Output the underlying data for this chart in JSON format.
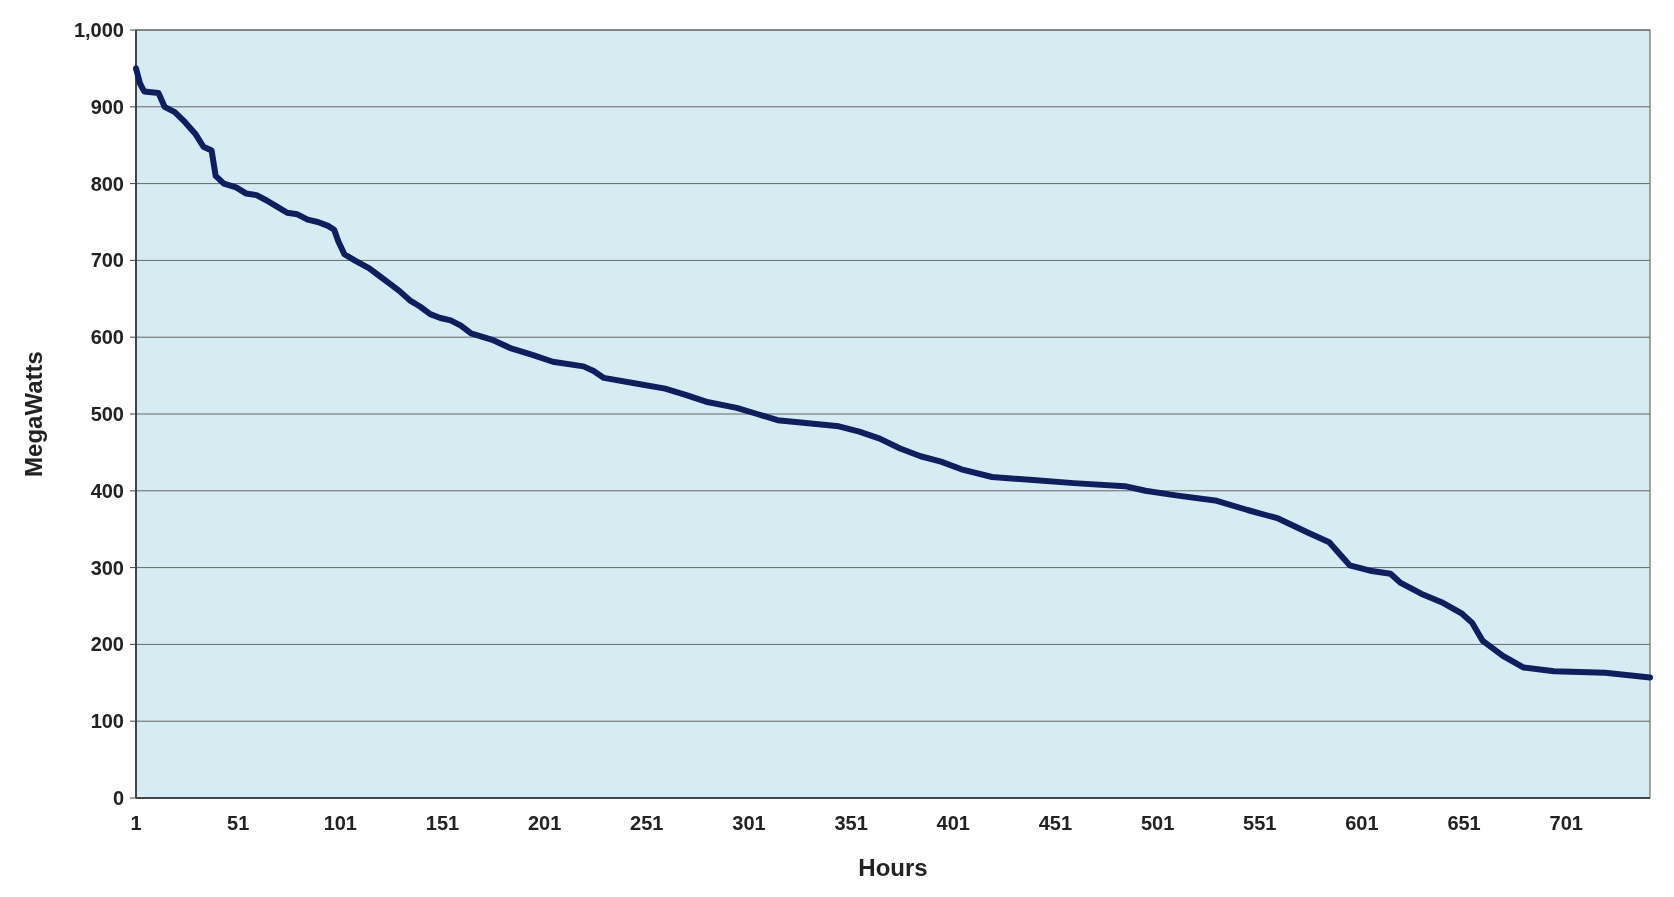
{
  "chart_data": {
    "type": "line",
    "xlabel": "Hours",
    "ylabel": "MegaWatts",
    "x": [
      1,
      3,
      5,
      12,
      15,
      20,
      25,
      30,
      34,
      38,
      40,
      44,
      50,
      55,
      60,
      65,
      70,
      75,
      80,
      85,
      90,
      95,
      98,
      100,
      103,
      108,
      115,
      120,
      125,
      130,
      135,
      140,
      145,
      150,
      155,
      160,
      165,
      175,
      185,
      195,
      205,
      220,
      225,
      230,
      245,
      260,
      270,
      280,
      295,
      305,
      315,
      330,
      345,
      355,
      365,
      375,
      385,
      395,
      405,
      420,
      440,
      460,
      485,
      495,
      510,
      530,
      545,
      560,
      575,
      585,
      595,
      605,
      615,
      620,
      630,
      640,
      650,
      655,
      660,
      670,
      680,
      695,
      720,
      742
    ],
    "series": [
      {
        "color": "#0d1f5c",
        "values": [
          950,
          930,
          920,
          918,
          900,
          893,
          880,
          865,
          848,
          843,
          810,
          800,
          795,
          787,
          785,
          778,
          770,
          762,
          760,
          753,
          750,
          745,
          740,
          725,
          708,
          700,
          690,
          680,
          670,
          660,
          648,
          640,
          630,
          625,
          622,
          615,
          605,
          597,
          585,
          577,
          568,
          562,
          556,
          547,
          540,
          533,
          525,
          516,
          508,
          500,
          492,
          488,
          484,
          477,
          468,
          455,
          445,
          438,
          428,
          418,
          414,
          410,
          406,
          400,
          394,
          387,
          375,
          364,
          345,
          333,
          303,
          296,
          292,
          280,
          266,
          255,
          240,
          228,
          205,
          185,
          170,
          165,
          163,
          157
        ]
      }
    ],
    "xlim": [
      1,
      742
    ],
    "xticks": [
      1,
      51,
      101,
      151,
      201,
      251,
      301,
      351,
      401,
      451,
      501,
      551,
      601,
      651,
      701
    ],
    "ylim": [
      0,
      1000
    ],
    "yticks": [
      0,
      100,
      200,
      300,
      400,
      500,
      600,
      700,
      800,
      900,
      {
        "value": 1000,
        "label": "1,000"
      }
    ],
    "grid": "y",
    "line_style": "solid",
    "marker": "none"
  }
}
